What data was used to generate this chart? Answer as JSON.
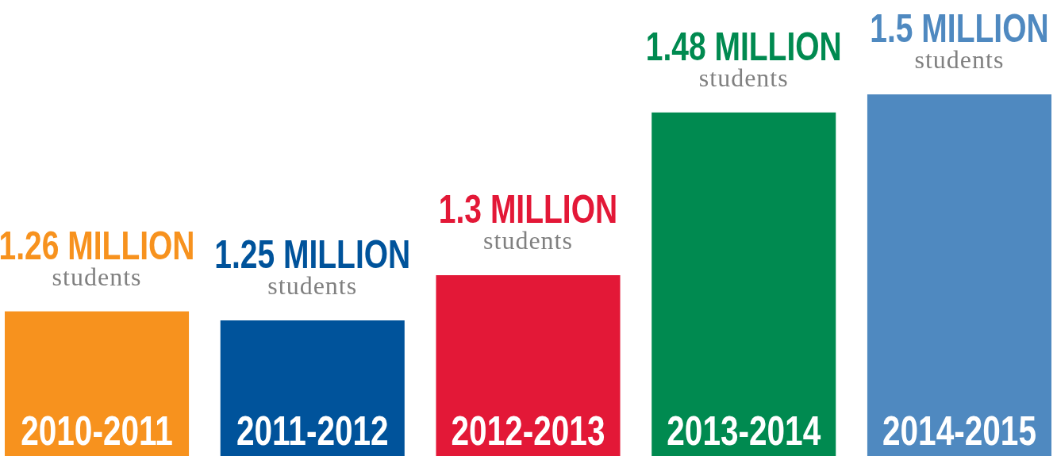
{
  "chart_data": {
    "type": "bar",
    "categories": [
      "2010-2011",
      "2011-2012",
      "2012-2013",
      "2013-2014",
      "2014-2015"
    ],
    "values": [
      1.26,
      1.25,
      1.3,
      1.48,
      1.5
    ],
    "colors": [
      "#f7921e",
      "#00539b",
      "#e31837",
      "#008a50",
      "#4f89c0"
    ],
    "value_labels": [
      "1.26 MILLION\nstudents",
      "1.25 MILLION\nstudents",
      "1.3 MILLION\nstudents",
      "1.48 MILLION\nstudents",
      "1.5 MILLION\nstudents"
    ],
    "ylim": [
      1.1,
      1.5
    ]
  }
}
